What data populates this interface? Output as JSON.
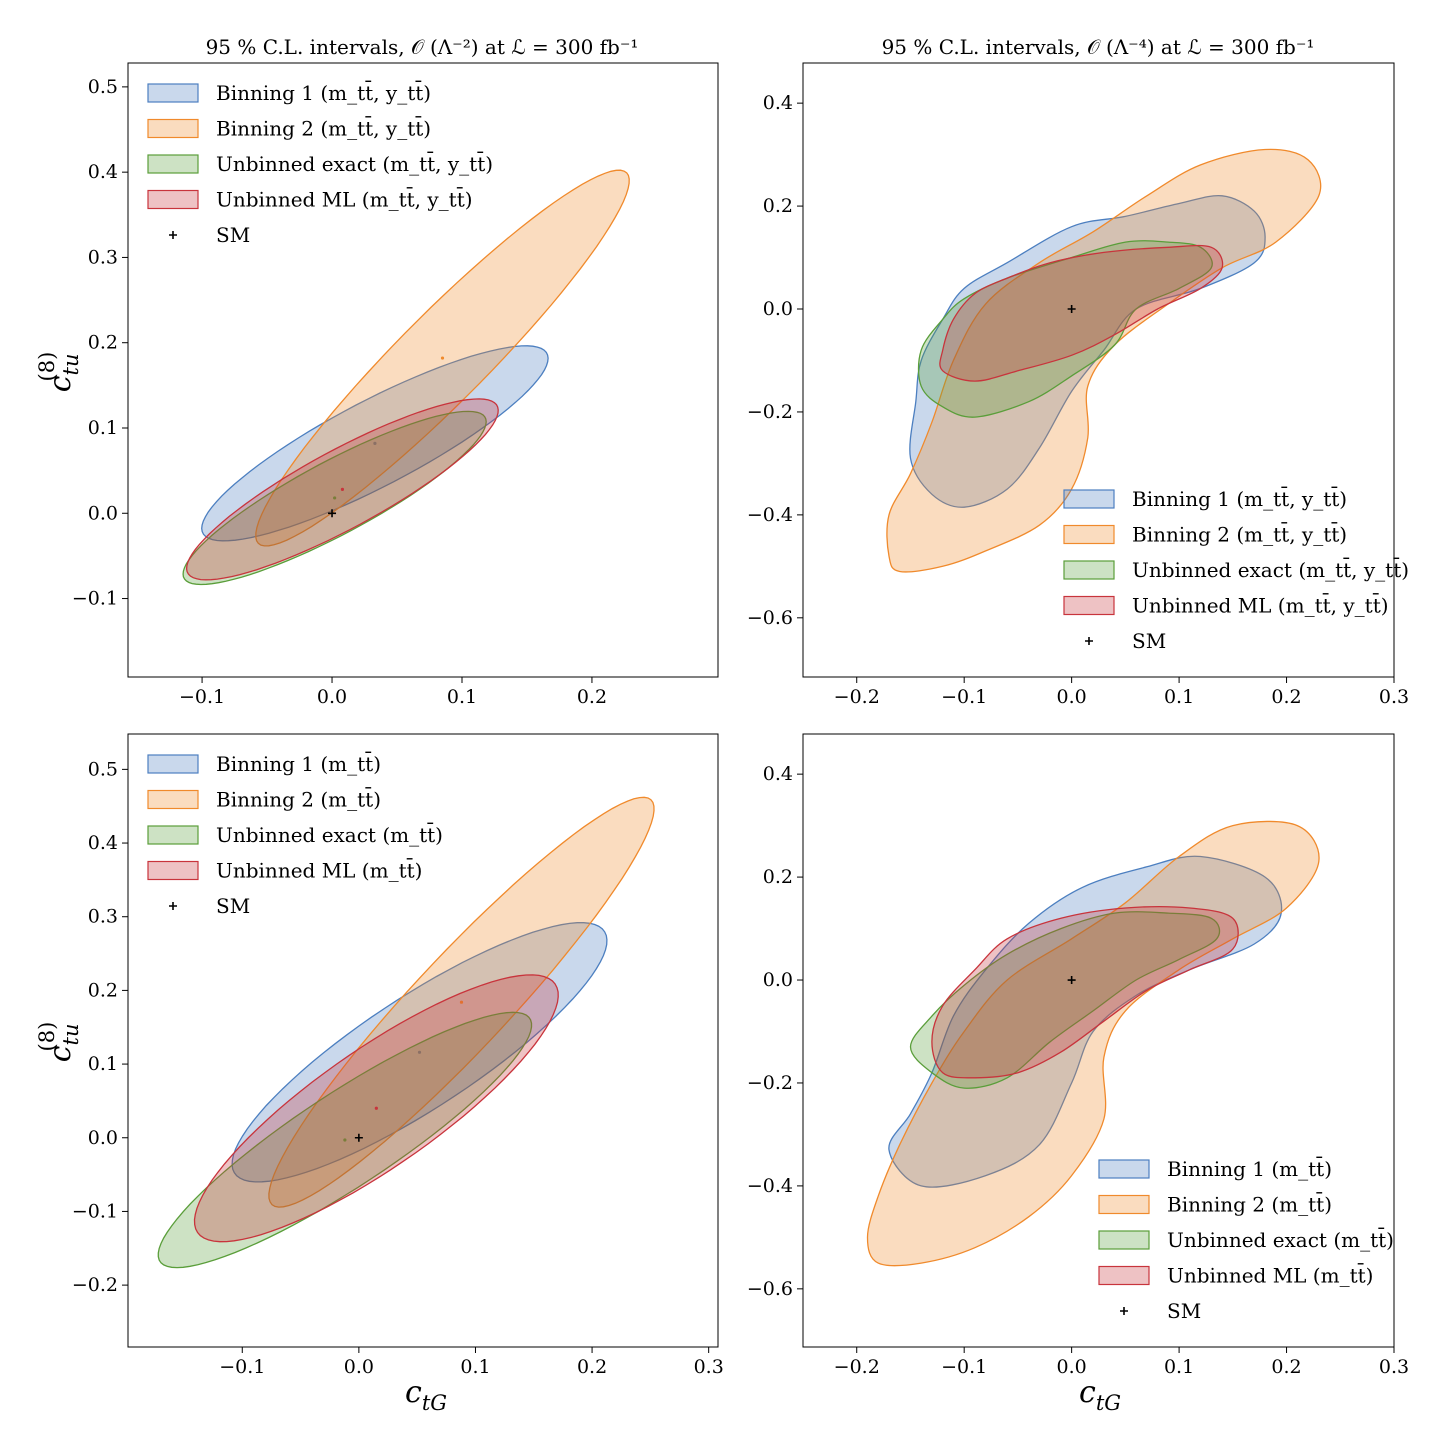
{
  "figure": {
    "xlabel": "c_tG",
    "ylabel": "c_tu^(8)",
    "label_parts": {
      "c": "c",
      "x_sub": "tG",
      "y_sub": "tu",
      "y_sup": "(8)"
    }
  },
  "colors": {
    "binning_1": "#4c7fc0",
    "binning_2": "#f08a2c",
    "unbinned_exact": "#5a9e3a",
    "unbinned_ml": "#c8343c",
    "sm": "#000000"
  },
  "chart_data": [
    {
      "type": "area",
      "title": "95 % C.L. intervals,  𝒪 (Λ⁻²) at ℒ = 300 fb⁻¹",
      "xlabel": "",
      "ylabel": "c_tu^(8)",
      "xlim": [
        -0.157,
        0.297
      ],
      "ylim": [
        -0.192,
        0.528
      ],
      "xticks": [
        -0.1,
        0.0,
        0.1,
        0.2
      ],
      "xtick_labels": [
        "−0.1",
        "0.0",
        "0.1",
        "0.2"
      ],
      "yticks": [
        -0.1,
        0.0,
        0.1,
        0.2,
        0.3,
        0.4,
        0.5
      ],
      "ytick_labels": [
        "−0.1",
        "0.0",
        "0.1",
        "0.2",
        "0.3",
        "0.4",
        "0.5"
      ],
      "legend_position": "upper left",
      "legend": [
        "Binning 1 (m_tt̄, y_tt̄)",
        "Binning 2 (m_tt̄, y_tt̄)",
        "Unbinned exact (m_tt̄, y_tt̄)",
        "Unbinned ML (m_tt̄, y_tt̄)",
        "SM"
      ],
      "sm_point": [
        0.0,
        0.0
      ],
      "series": [
        {
          "name": "Binning 1 (m_tt̄, y_tt̄)",
          "color": "#4c7fc0",
          "center": [
            0.033,
            0.082
          ],
          "width": 0.34,
          "height": 0.088,
          "angle_deg": 40.0
        },
        {
          "name": "Binning 2 (m_tt̄, y_tt̄)",
          "color": "#f08a2c",
          "center": [
            0.085,
            0.182
          ],
          "width": 0.52,
          "height": 0.08,
          "angle_deg": 57.5
        },
        {
          "name": "Unbinned exact (m_tt̄, y_tt̄)",
          "color": "#5a9e3a",
          "center": [
            0.002,
            0.018
          ],
          "width": 0.3,
          "height": 0.075,
          "angle_deg": 40.5
        },
        {
          "name": "Unbinned ML (m_tt̄, y_tt̄)",
          "color": "#c8343c",
          "center": [
            0.008,
            0.028
          ],
          "width": 0.31,
          "height": 0.08,
          "angle_deg": 41.0
        }
      ]
    },
    {
      "type": "area",
      "title": "95 % C.L. intervals,  𝒪 (Λ⁻⁴) at ℒ = 300 fb⁻¹",
      "xlabel": "",
      "ylabel": "",
      "xlim": [
        -0.25,
        0.3
      ],
      "ylim": [
        -0.715,
        0.478
      ],
      "xticks": [
        -0.2,
        -0.1,
        0.0,
        0.1,
        0.2,
        0.3
      ],
      "xtick_labels": [
        "−0.2",
        "−0.1",
        "0.0",
        "0.1",
        "0.2",
        "0.3"
      ],
      "yticks": [
        -0.6,
        -0.4,
        -0.2,
        0.0,
        0.2,
        0.4
      ],
      "ytick_labels": [
        "−0.6",
        "−0.4",
        "−0.2",
        "0.0",
        "0.2",
        "0.4"
      ],
      "legend_position": "lower right",
      "legend": [
        "Binning 1 (m_tt̄, y_tt̄)",
        "Binning 2 (m_tt̄, y_tt̄)",
        "Unbinned exact (m_tt̄, y_tt̄)",
        "Unbinned ML (m_tt̄, y_tt̄)",
        "SM"
      ],
      "sm_point": [
        0.0,
        0.0
      ],
      "series": [
        {
          "name": "Binning 1 (m_tt̄, y_tt̄)",
          "color": "#4c7fc0",
          "points": [
            [
              -0.15,
              -0.29
            ],
            [
              -0.145,
              -0.18
            ],
            [
              -0.14,
              -0.1
            ],
            [
              -0.12,
              -0.02
            ],
            [
              -0.1,
              0.04
            ],
            [
              -0.06,
              0.09
            ],
            [
              0.0,
              0.16
            ],
            [
              0.05,
              0.18
            ],
            [
              0.1,
              0.205
            ],
            [
              0.14,
              0.22
            ],
            [
              0.17,
              0.19
            ],
            [
              0.18,
              0.14
            ],
            [
              0.17,
              0.09
            ],
            [
              0.12,
              0.04
            ],
            [
              0.06,
              0.0
            ],
            [
              0.03,
              -0.08
            ],
            [
              0.0,
              -0.16
            ],
            [
              -0.03,
              -0.27
            ],
            [
              -0.06,
              -0.35
            ],
            [
              -0.1,
              -0.385
            ],
            [
              -0.13,
              -0.36
            ]
          ]
        },
        {
          "name": "Binning 2 (m_tt̄, y_tt̄)",
          "color": "#f08a2c",
          "points": [
            [
              -0.17,
              -0.48
            ],
            [
              -0.17,
              -0.4
            ],
            [
              -0.15,
              -0.32
            ],
            [
              -0.13,
              -0.22
            ],
            [
              -0.11,
              -0.1
            ],
            [
              -0.08,
              0.01
            ],
            [
              -0.03,
              0.09
            ],
            [
              0.02,
              0.15
            ],
            [
              0.07,
              0.22
            ],
            [
              0.12,
              0.28
            ],
            [
              0.18,
              0.31
            ],
            [
              0.22,
              0.29
            ],
            [
              0.23,
              0.22
            ],
            [
              0.19,
              0.13
            ],
            [
              0.14,
              0.08
            ],
            [
              0.09,
              0.01
            ],
            [
              0.04,
              -0.07
            ],
            [
              0.015,
              -0.15
            ],
            [
              0.015,
              -0.25
            ],
            [
              0.0,
              -0.35
            ],
            [
              -0.03,
              -0.42
            ],
            [
              -0.08,
              -0.47
            ],
            [
              -0.12,
              -0.5
            ],
            [
              -0.16,
              -0.51
            ]
          ]
        },
        {
          "name": "Unbinned exact (m_tt̄, y_tt̄)",
          "color": "#5a9e3a",
          "points": [
            [
              -0.14,
              -0.08
            ],
            [
              -0.12,
              -0.02
            ],
            [
              -0.1,
              0.02
            ],
            [
              -0.06,
              0.06
            ],
            [
              0.0,
              0.1
            ],
            [
              0.05,
              0.13
            ],
            [
              0.09,
              0.13
            ],
            [
              0.12,
              0.12
            ],
            [
              0.13,
              0.08
            ],
            [
              0.1,
              0.04
            ],
            [
              0.06,
              0.0
            ],
            [
              0.04,
              -0.07
            ],
            [
              0.0,
              -0.13
            ],
            [
              -0.04,
              -0.18
            ],
            [
              -0.09,
              -0.21
            ],
            [
              -0.12,
              -0.19
            ],
            [
              -0.14,
              -0.15
            ]
          ]
        },
        {
          "name": "Unbinned ML (m_tt̄, y_tt̄)",
          "color": "#c8343c",
          "points": [
            [
              -0.12,
              -0.08
            ],
            [
              -0.11,
              -0.02
            ],
            [
              -0.09,
              0.03
            ],
            [
              -0.06,
              0.06
            ],
            [
              -0.02,
              0.09
            ],
            [
              0.03,
              0.11
            ],
            [
              0.09,
              0.12
            ],
            [
              0.13,
              0.12
            ],
            [
              0.14,
              0.08
            ],
            [
              0.12,
              0.04
            ],
            [
              0.08,
              0.0
            ],
            [
              0.04,
              -0.05
            ],
            [
              0.0,
              -0.09
            ],
            [
              -0.05,
              -0.12
            ],
            [
              -0.09,
              -0.14
            ],
            [
              -0.12,
              -0.12
            ]
          ]
        }
      ]
    },
    {
      "type": "area",
      "title": "",
      "xlabel": "c_tG",
      "ylabel": "c_tu^(8)",
      "xlim": [
        -0.198,
        0.308
      ],
      "ylim": [
        -0.284,
        0.548
      ],
      "xticks": [
        -0.1,
        0.0,
        0.1,
        0.2,
        0.3
      ],
      "xtick_labels": [
        "−0.1",
        "0.0",
        "0.1",
        "0.2",
        "0.3"
      ],
      "yticks": [
        -0.2,
        -0.1,
        0.0,
        0.1,
        0.2,
        0.3,
        0.4,
        0.5
      ],
      "ytick_labels": [
        "−0.2",
        "−0.1",
        "0.0",
        "0.1",
        "0.2",
        "0.3",
        "0.4",
        "0.5"
      ],
      "legend_position": "upper left",
      "legend": [
        "Binning 1 (m_tt̄)",
        "Binning 2 (m_tt̄)",
        "Unbinned exact (m_tt̄)",
        "Unbinned ML (m_tt̄)",
        "SM"
      ],
      "sm_point": [
        0.0,
        0.0
      ],
      "series": [
        {
          "name": "Binning 1 (m_tt̄)",
          "color": "#4c7fc0",
          "center": [
            0.052,
            0.116
          ],
          "width": 0.46,
          "height": 0.125,
          "angle_deg": 48.0
        },
        {
          "name": "Binning 2 (m_tt̄)",
          "color": "#f08a2c",
          "center": [
            0.088,
            0.184
          ],
          "width": 0.64,
          "height": 0.095,
          "angle_deg": 60.0
        },
        {
          "name": "Unbinned exact (m_tt̄)",
          "color": "#5a9e3a",
          "center": [
            -0.012,
            -0.003
          ],
          "width": 0.46,
          "height": 0.105,
          "angle_deg": 47.5
        },
        {
          "name": "Unbinned ML (m_tt̄)",
          "color": "#c8343c",
          "center": [
            0.015,
            0.04
          ],
          "width": 0.46,
          "height": 0.13,
          "angle_deg": 50.0
        }
      ]
    },
    {
      "type": "area",
      "title": "",
      "xlabel": "c_tG",
      "ylabel": "",
      "xlim": [
        -0.25,
        0.3
      ],
      "ylim": [
        -0.713,
        0.478
      ],
      "xticks": [
        -0.2,
        -0.1,
        0.0,
        0.1,
        0.2,
        0.3
      ],
      "xtick_labels": [
        "−0.2",
        "−0.1",
        "0.0",
        "0.1",
        "0.2",
        "0.3"
      ],
      "yticks": [
        -0.6,
        -0.4,
        -0.2,
        0.0,
        0.2,
        0.4
      ],
      "ytick_labels": [
        "−0.6",
        "−0.4",
        "−0.2",
        "0.0",
        "0.2",
        "0.4"
      ],
      "legend_position": "lower right",
      "legend": [
        "Binning 1 (m_tt̄)",
        "Binning 2 (m_tt̄)",
        "Unbinned exact (m_tt̄)",
        "Unbinned ML (m_tt̄)",
        "SM"
      ],
      "sm_point": [
        0.0,
        0.0
      ],
      "series": [
        {
          "name": "Binning 1 (m_tt̄)",
          "color": "#4c7fc0",
          "points": [
            [
              -0.17,
              -0.33
            ],
            [
              -0.15,
              -0.26
            ],
            [
              -0.13,
              -0.18
            ],
            [
              -0.11,
              -0.07
            ],
            [
              -0.08,
              0.02
            ],
            [
              -0.04,
              0.11
            ],
            [
              0.01,
              0.18
            ],
            [
              0.07,
              0.22
            ],
            [
              0.12,
              0.24
            ],
            [
              0.18,
              0.2
            ],
            [
              0.195,
              0.13
            ],
            [
              0.17,
              0.07
            ],
            [
              0.11,
              0.02
            ],
            [
              0.06,
              -0.03
            ],
            [
              0.02,
              -0.1
            ],
            [
              0.0,
              -0.2
            ],
            [
              -0.03,
              -0.32
            ],
            [
              -0.08,
              -0.38
            ],
            [
              -0.14,
              -0.4
            ]
          ]
        },
        {
          "name": "Binning 2 (m_tt̄)",
          "color": "#f08a2c",
          "points": [
            [
              -0.19,
              -0.5
            ],
            [
              -0.18,
              -0.42
            ],
            [
              -0.16,
              -0.32
            ],
            [
              -0.13,
              -0.2
            ],
            [
              -0.1,
              -0.1
            ],
            [
              -0.06,
              0.0
            ],
            [
              0.0,
              0.08
            ],
            [
              0.05,
              0.15
            ],
            [
              0.1,
              0.24
            ],
            [
              0.15,
              0.3
            ],
            [
              0.21,
              0.3
            ],
            [
              0.23,
              0.23
            ],
            [
              0.2,
              0.14
            ],
            [
              0.15,
              0.08
            ],
            [
              0.1,
              0.02
            ],
            [
              0.05,
              -0.06
            ],
            [
              0.03,
              -0.15
            ],
            [
              0.03,
              -0.27
            ],
            [
              0.0,
              -0.38
            ],
            [
              -0.04,
              -0.46
            ],
            [
              -0.09,
              -0.52
            ],
            [
              -0.14,
              -0.55
            ],
            [
              -0.18,
              -0.55
            ]
          ]
        },
        {
          "name": "Unbinned exact (m_tt̄)",
          "color": "#5a9e3a",
          "points": [
            [
              -0.15,
              -0.13
            ],
            [
              -0.13,
              -0.07
            ],
            [
              -0.1,
              -0.01
            ],
            [
              -0.06,
              0.05
            ],
            [
              -0.01,
              0.1
            ],
            [
              0.04,
              0.13
            ],
            [
              0.09,
              0.13
            ],
            [
              0.13,
              0.12
            ],
            [
              0.135,
              0.08
            ],
            [
              0.1,
              0.04
            ],
            [
              0.06,
              0.0
            ],
            [
              0.02,
              -0.06
            ],
            [
              -0.02,
              -0.12
            ],
            [
              -0.06,
              -0.19
            ],
            [
              -0.1,
              -0.21
            ],
            [
              -0.13,
              -0.18
            ]
          ]
        },
        {
          "name": "Unbinned ML (m_tt̄)",
          "color": "#c8343c",
          "points": [
            [
              -0.13,
              -0.12
            ],
            [
              -0.12,
              -0.05
            ],
            [
              -0.09,
              0.02
            ],
            [
              -0.06,
              0.08
            ],
            [
              -0.01,
              0.12
            ],
            [
              0.05,
              0.14
            ],
            [
              0.11,
              0.14
            ],
            [
              0.15,
              0.12
            ],
            [
              0.15,
              0.06
            ],
            [
              0.11,
              0.02
            ],
            [
              0.07,
              -0.02
            ],
            [
              0.03,
              -0.08
            ],
            [
              -0.01,
              -0.14
            ],
            [
              -0.05,
              -0.18
            ],
            [
              -0.09,
              -0.19
            ],
            [
              -0.12,
              -0.18
            ]
          ]
        }
      ]
    }
  ]
}
